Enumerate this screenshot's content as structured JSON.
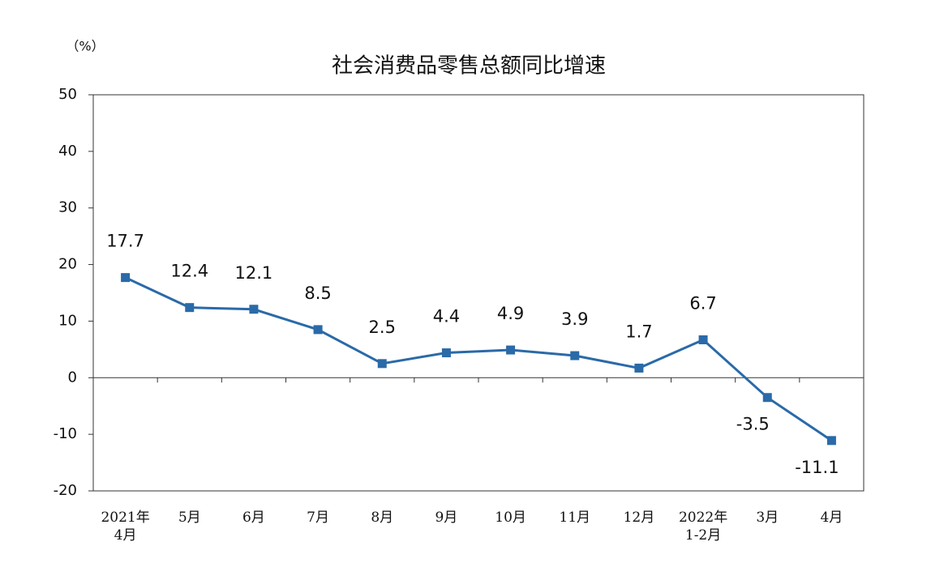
{
  "chart_data": {
    "type": "line",
    "title": "社会消费品零售总额同比增速",
    "y_unit": "（%）",
    "categories": [
      "2021年\n4月",
      "5月",
      "6月",
      "7月",
      "8月",
      "9月",
      "10月",
      "11月",
      "12月",
      "2022年\n1-2月",
      "3月",
      "4月"
    ],
    "values": [
      17.7,
      12.4,
      12.1,
      8.5,
      2.5,
      4.4,
      4.9,
      3.9,
      1.7,
      6.7,
      -3.5,
      -11.1
    ],
    "color": "#2a6aa8",
    "ylim": [
      -20,
      50
    ],
    "yticks": [
      -20,
      -10,
      0,
      10,
      20,
      30,
      40,
      50
    ],
    "grid": false
  }
}
